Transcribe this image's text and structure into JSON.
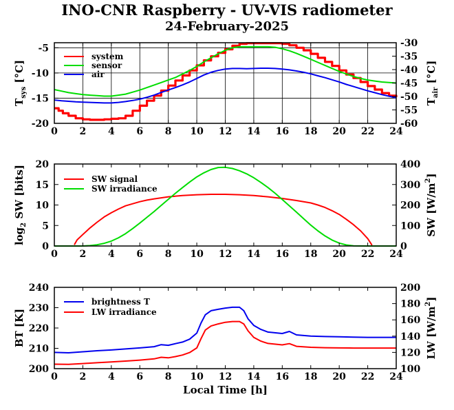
{
  "title": "INO-CNR Raspberry - UV-VIS radiometer",
  "subtitle": "24-February-2025",
  "chart_data": [
    {
      "type": "line",
      "panel": "temperature",
      "xlabel": "",
      "ylabel": "T_sys [°C]",
      "ylabel_parts": {
        "main": "T",
        "sub": "sys",
        "unit": "[°C]"
      },
      "y2label": "T_air [°C]",
      "y2label_parts": {
        "main": "T",
        "sub": "air",
        "unit": "[°C]"
      },
      "xlim": [
        0,
        24
      ],
      "ylim": [
        -20,
        -4
      ],
      "y2lim": [
        -60,
        -30
      ],
      "xticks": [
        0,
        2,
        4,
        6,
        8,
        10,
        12,
        14,
        16,
        18,
        20,
        22,
        24
      ],
      "yticks": [
        -20,
        -15,
        -10,
        -5
      ],
      "y2ticks": [
        -60,
        -55,
        -50,
        -45,
        -40,
        -35,
        -30
      ],
      "grid": true,
      "legend": "top-left",
      "series": [
        {
          "name": "system",
          "color": "#ff0000",
          "axis": "left",
          "step": true,
          "x": [
            0,
            0.3,
            0.6,
            1,
            1.5,
            2,
            2.5,
            3,
            3.5,
            4,
            4.5,
            5,
            5.5,
            6,
            6.5,
            7,
            7.5,
            8,
            8.5,
            9,
            9.5,
            10,
            10.5,
            11,
            11.5,
            12,
            12.5,
            13,
            13.5,
            14,
            14.5,
            15,
            15.5,
            16,
            16.5,
            17,
            17.5,
            18,
            18.5,
            19,
            19.5,
            20,
            20.5,
            21,
            21.5,
            22,
            22.5,
            23,
            23.5,
            24
          ],
          "y": [
            -17,
            -17.5,
            -18,
            -18.5,
            -19,
            -19.2,
            -19.3,
            -19.3,
            -19.2,
            -19.1,
            -19,
            -18.5,
            -17.5,
            -16.5,
            -15.5,
            -14.5,
            -13.5,
            -12.5,
            -11.5,
            -10.5,
            -9.5,
            -8.5,
            -7.5,
            -6.7,
            -6,
            -5.3,
            -4.6,
            -4.2,
            -4.1,
            -4.1,
            -4.1,
            -4.1,
            -4.1,
            -4.2,
            -4.5,
            -5,
            -5.5,
            -6.2,
            -7,
            -7.8,
            -8.6,
            -9.5,
            -10.3,
            -11,
            -11.8,
            -12.6,
            -13.3,
            -14,
            -14.5,
            -14.8
          ]
        },
        {
          "name": "sensor",
          "color": "#00dd00",
          "axis": "left",
          "x": [
            0,
            0.5,
            1,
            1.5,
            2,
            2.5,
            3,
            3.5,
            4,
            4.5,
            5,
            5.5,
            6,
            6.5,
            7,
            7.5,
            8,
            8.5,
            9,
            9.5,
            10,
            10.5,
            11,
            11.5,
            12,
            12.5,
            13,
            13.5,
            14,
            14.5,
            15,
            15.5,
            16,
            16.5,
            17,
            17.5,
            18,
            18.5,
            19,
            19.5,
            20,
            20.5,
            21,
            21.5,
            22,
            22.5,
            23,
            23.5,
            24
          ],
          "y": [
            -13.3,
            -13.6,
            -13.9,
            -14.1,
            -14.3,
            -14.4,
            -14.5,
            -14.6,
            -14.6,
            -14.4,
            -14.2,
            -13.8,
            -13.4,
            -12.9,
            -12.4,
            -11.9,
            -11.4,
            -10.9,
            -10.2,
            -9.5,
            -8.7,
            -7.8,
            -7,
            -6.2,
            -5.5,
            -5,
            -4.8,
            -4.8,
            -4.8,
            -4.8,
            -4.8,
            -4.9,
            -5.2,
            -5.6,
            -6.1,
            -6.7,
            -7.3,
            -7.9,
            -8.5,
            -9.1,
            -9.7,
            -10.2,
            -10.7,
            -11.1,
            -11.4,
            -11.6,
            -11.8,
            -11.9,
            -12
          ]
        },
        {
          "name": "air",
          "color": "#0000ee",
          "axis": "right",
          "x": [
            0,
            0.5,
            1,
            1.5,
            2,
            2.5,
            3,
            3.5,
            4,
            4.5,
            5,
            5.5,
            6,
            6.5,
            7,
            7.5,
            8,
            8.5,
            9,
            9.5,
            10,
            10.5,
            11,
            11.5,
            12,
            12.5,
            13,
            13.5,
            14,
            14.5,
            15,
            15.5,
            16,
            16.5,
            17,
            17.5,
            18,
            18.5,
            19,
            19.5,
            20,
            20.5,
            21,
            21.5,
            22,
            22.5,
            23,
            23.5,
            24
          ],
          "y": [
            -51.3,
            -51.6,
            -51.8,
            -52,
            -52.1,
            -52.2,
            -52.3,
            -52.4,
            -52.4,
            -52.2,
            -51.9,
            -51.5,
            -51,
            -50.3,
            -49.5,
            -48.5,
            -47.6,
            -46.7,
            -45.7,
            -44.6,
            -43.3,
            -42,
            -41,
            -40.3,
            -39.8,
            -39.6,
            -39.6,
            -39.7,
            -39.6,
            -39.5,
            -39.5,
            -39.6,
            -39.8,
            -40.1,
            -40.5,
            -41,
            -41.6,
            -42.3,
            -43,
            -43.8,
            -44.6,
            -45.5,
            -46.3,
            -47.1,
            -47.9,
            -48.6,
            -49.3,
            -49.9,
            -50.5
          ]
        }
      ]
    },
    {
      "type": "line",
      "panel": "shortwave",
      "xlabel": "",
      "ylabel": "log2 SW [bits]",
      "ylabel_parts": {
        "main": "log",
        "sub": "2",
        "unit": "SW [bits]"
      },
      "y2label": "SW [W/m2]",
      "y2label_parts": {
        "main": "SW [W/m",
        "sup": "2",
        "unit": "]"
      },
      "xlim": [
        0,
        24
      ],
      "ylim": [
        0,
        20
      ],
      "y2lim": [
        0,
        400
      ],
      "xticks": [
        0,
        2,
        4,
        6,
        8,
        10,
        12,
        14,
        16,
        18,
        20,
        22,
        24
      ],
      "yticks": [
        0,
        5,
        10,
        15,
        20
      ],
      "y2ticks": [
        0,
        100,
        200,
        300,
        400
      ],
      "grid": false,
      "legend": "top-left",
      "series": [
        {
          "name": "SW signal",
          "color": "#ff0000",
          "axis": "left",
          "x": [
            1.4,
            1.6,
            2,
            2.5,
            3,
            3.5,
            4,
            4.5,
            5,
            5.5,
            6,
            6.5,
            7,
            8,
            9,
            10,
            11,
            12,
            13,
            14,
            15,
            16,
            17,
            18,
            18.5,
            19,
            19.5,
            20,
            20.5,
            21,
            21.5,
            22,
            22.3
          ],
          "y": [
            0.3,
            1.5,
            2.8,
            4.4,
            5.8,
            7.1,
            8.1,
            9,
            9.8,
            10.3,
            10.8,
            11.2,
            11.5,
            12,
            12.3,
            12.5,
            12.6,
            12.6,
            12.5,
            12.3,
            12,
            11.6,
            11.1,
            10.5,
            10,
            9.4,
            8.6,
            7.7,
            6.5,
            5.2,
            3.7,
            1.8,
            0.2
          ]
        },
        {
          "name": "SW irradiance",
          "color": "#00dd00",
          "axis": "right",
          "x": [
            0,
            2,
            2.5,
            3,
            3.5,
            4,
            4.5,
            5,
            5.5,
            6,
            6.5,
            7,
            7.5,
            8,
            8.5,
            9,
            9.5,
            10,
            10.5,
            11,
            11.5,
            12,
            12.5,
            13,
            13.5,
            14,
            14.5,
            15,
            15.5,
            16,
            16.5,
            17,
            17.5,
            18,
            18.5,
            19,
            19.5,
            20,
            20.5,
            21,
            22,
            24
          ],
          "y": [
            0,
            0,
            2,
            6,
            13,
            24,
            40,
            60,
            85,
            112,
            140,
            168,
            198,
            228,
            257,
            285,
            312,
            337,
            357,
            373,
            383,
            384,
            378,
            367,
            352,
            333,
            310,
            285,
            257,
            227,
            196,
            165,
            133,
            102,
            74,
            49,
            29,
            14,
            5,
            1,
            0,
            0
          ]
        }
      ]
    },
    {
      "type": "line",
      "panel": "longwave",
      "xlabel": "Local Time [h]",
      "ylabel": "BT [K]",
      "y2label": "LW [W/m2]",
      "y2label_parts": {
        "main": "LW [W/m",
        "sup": "2",
        "unit": "]"
      },
      "xlim": [
        0,
        24
      ],
      "ylim": [
        200,
        240
      ],
      "y2lim": [
        100,
        200
      ],
      "xticks": [
        0,
        2,
        4,
        6,
        8,
        10,
        12,
        14,
        16,
        18,
        20,
        22,
        24
      ],
      "yticks": [
        200,
        210,
        220,
        230,
        240
      ],
      "y2ticks": [
        100,
        120,
        140,
        160,
        180,
        200
      ],
      "grid": false,
      "legend": "top-left",
      "series": [
        {
          "name": "brightness T",
          "color": "#0000ee",
          "axis": "left",
          "x": [
            0,
            1,
            2,
            3,
            4,
            5,
            6,
            7,
            7.5,
            8,
            8.5,
            9,
            9.5,
            10,
            10.3,
            10.6,
            11,
            11.5,
            12,
            12.5,
            13,
            13.3,
            13.6,
            14,
            14.5,
            15,
            16,
            16.5,
            17,
            18,
            19,
            20,
            21,
            22,
            23,
            24
          ],
          "y": [
            208,
            207.8,
            208.3,
            208.8,
            209.2,
            209.7,
            210.2,
            210.8,
            211.8,
            211.5,
            212.3,
            213.1,
            214.5,
            217.5,
            222.5,
            226.5,
            228.5,
            229.2,
            229.8,
            230.2,
            230.2,
            228.5,
            224.5,
            221.3,
            219.3,
            218,
            217.3,
            218.3,
            216.6,
            216,
            215.8,
            215.7,
            215.5,
            215.4,
            215.4,
            215.4
          ]
        },
        {
          "name": "LW irradiance",
          "color": "#ff0000",
          "axis": "right",
          "x": [
            0,
            1,
            2,
            3,
            4,
            5,
            6,
            7,
            7.5,
            8,
            8.5,
            9,
            9.5,
            10,
            10.3,
            10.6,
            11,
            11.5,
            12,
            12.5,
            13,
            13.3,
            13.6,
            14,
            14.5,
            15,
            16,
            16.5,
            17,
            18,
            19,
            20,
            21,
            22,
            23,
            24
          ],
          "y": [
            105.5,
            105.3,
            106.3,
            107.3,
            108.2,
            109.3,
            110.5,
            112,
            114,
            113.3,
            114.8,
            116.8,
            119.8,
            125.5,
            137,
            147.5,
            152.5,
            155,
            157,
            158,
            158,
            155,
            146.5,
            138.5,
            133.8,
            131,
            129.2,
            130.8,
            127.5,
            126.3,
            125.8,
            125.5,
            125.3,
            125.3,
            125.3,
            125.3
          ]
        }
      ]
    }
  ]
}
